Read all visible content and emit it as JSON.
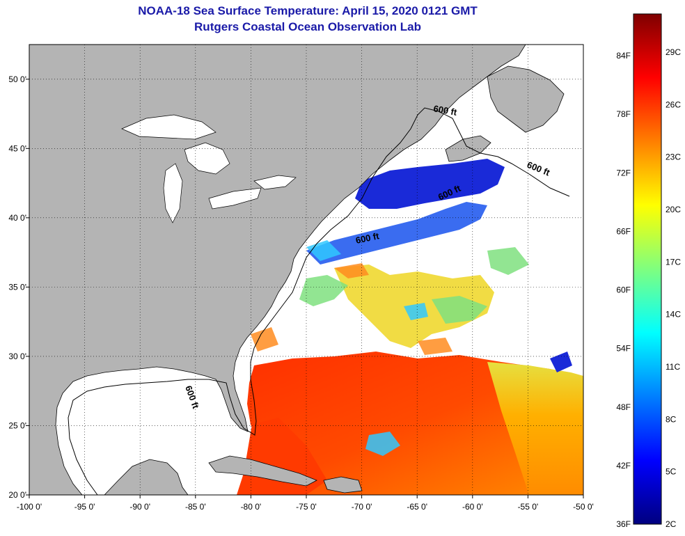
{
  "title_line1": "NOAA-18 Sea Surface Temperature:  April 15, 2020 0121 GMT",
  "title_line2": "Rutgers Coastal Ocean Observation Lab",
  "map": {
    "longitude_ticks": [
      {
        "value": -100,
        "label": "-100 0'"
      },
      {
        "value": -95,
        "label": "-95 0'"
      },
      {
        "value": -90,
        "label": "-90 0'"
      },
      {
        "value": -85,
        "label": "-85 0'"
      },
      {
        "value": -80,
        "label": "-80 0'"
      },
      {
        "value": -75,
        "label": "-75 0'"
      },
      {
        "value": -70,
        "label": "-70 0'"
      },
      {
        "value": -65,
        "label": "-65 0'"
      },
      {
        "value": -60,
        "label": "-60 0'"
      },
      {
        "value": -55,
        "label": "-55 0'"
      },
      {
        "value": -50,
        "label": "-50 0'"
      }
    ],
    "latitude_ticks": [
      {
        "value": 20,
        "label": "20 0'"
      },
      {
        "value": 25,
        "label": "25 0'"
      },
      {
        "value": 30,
        "label": "30 0'"
      },
      {
        "value": 35,
        "label": "35 0'"
      },
      {
        "value": 40,
        "label": "40 0'"
      },
      {
        "value": 45,
        "label": "45 0'"
      },
      {
        "value": 50,
        "label": "50 0'"
      }
    ],
    "lon_range": [
      -100,
      -50
    ],
    "lat_range": [
      20,
      52.5
    ],
    "contour_label": "600 ft",
    "land_color": "#b4b4b4",
    "cloud_color": "#ffffff"
  },
  "colorbar": {
    "fahrenheit_labels": [
      "84F",
      "78F",
      "72F",
      "66F",
      "60F",
      "54F",
      "48F",
      "42F",
      "36F"
    ],
    "celsius_labels": [
      "29C",
      "26C",
      "23C",
      "20C",
      "17C",
      "14C",
      "11C",
      "8C",
      "5C",
      "2C"
    ],
    "colors_bottom_to_top": [
      "#00007f",
      "#0000ff",
      "#007fff",
      "#00ffff",
      "#7fff7f",
      "#ffff00",
      "#ff7f00",
      "#ff0000",
      "#7f0000"
    ]
  }
}
